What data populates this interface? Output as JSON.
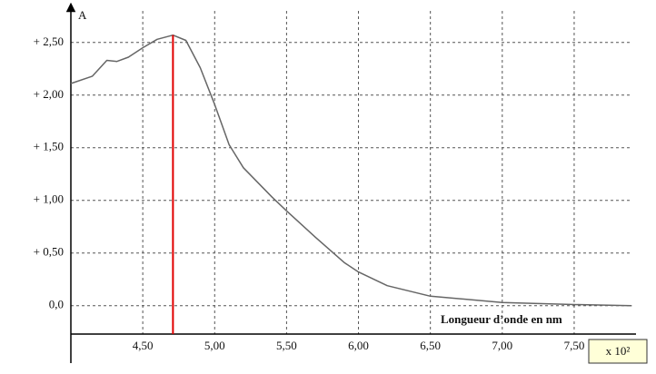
{
  "chart_data": {
    "type": "line",
    "y_axis_label": "A",
    "x_axis_label": "Longueur d’onde en nm",
    "x_multiplier": "x 10²",
    "x": [
      4.0,
      4.15,
      4.25,
      4.32,
      4.4,
      4.5,
      4.6,
      4.71,
      4.8,
      4.9,
      5.0,
      5.1,
      5.2,
      5.4,
      5.5,
      5.7,
      5.9,
      6.0,
      6.2,
      6.5,
      7.0,
      7.5,
      7.9
    ],
    "values": [
      2.11,
      2.18,
      2.33,
      2.32,
      2.36,
      2.45,
      2.53,
      2.57,
      2.52,
      2.26,
      1.91,
      1.53,
      1.31,
      1.03,
      0.9,
      0.65,
      0.41,
      0.32,
      0.19,
      0.09,
      0.03,
      0.01,
      0.0
    ],
    "color": "#666666",
    "marker": {
      "x": 4.71,
      "color": "#e00000"
    },
    "xlim": [
      4.0,
      7.93
    ],
    "ylim": [
      -0.27,
      2.8
    ],
    "xticks": [
      {
        "value": 4.5,
        "label": "4,50"
      },
      {
        "value": 5.0,
        "label": "5,00"
      },
      {
        "value": 5.5,
        "label": "5,50"
      },
      {
        "value": 6.0,
        "label": "6,00"
      },
      {
        "value": 6.5,
        "label": "6,50"
      },
      {
        "value": 7.0,
        "label": "7,00"
      },
      {
        "value": 7.5,
        "label": "7,50"
      }
    ],
    "yticks": [
      {
        "value": 0,
        "label": "0,0"
      },
      {
        "value": 0.5,
        "label": "+ 0,50"
      },
      {
        "value": 1.0,
        "label": "+ 1,00"
      },
      {
        "value": 1.5,
        "label": "+ 1,50"
      },
      {
        "value": 2.0,
        "label": "+ 2,00"
      },
      {
        "value": 2.5,
        "label": "+ 2,50"
      }
    ],
    "grid": true
  }
}
